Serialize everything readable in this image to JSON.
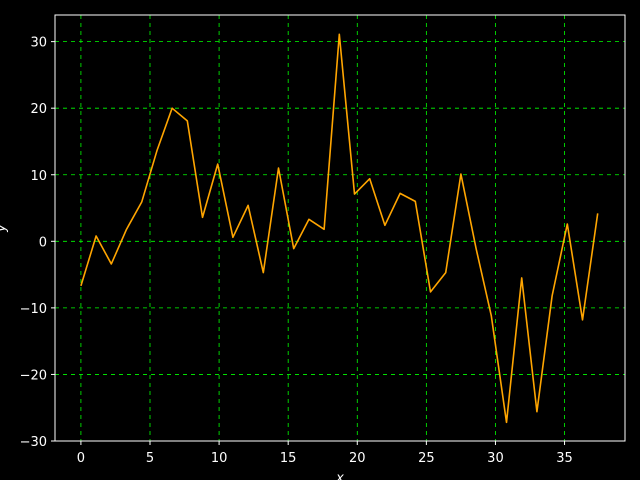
{
  "chart_data": {
    "type": "line",
    "xlabel": "x",
    "ylabel": "y",
    "xlim": [
      -1.875,
      39.375
    ],
    "ylim": [
      -30,
      34
    ],
    "grid": true,
    "x_ticks": [
      0,
      5,
      10,
      15,
      20,
      25,
      30,
      35
    ],
    "y_ticks": [
      -30,
      -20,
      -10,
      0,
      10,
      20,
      30
    ],
    "series": [
      {
        "color": "#FFA500",
        "x": [
          0,
          1.1,
          2.2,
          3.3,
          4.4,
          5.5,
          6.6,
          7.7,
          8.8,
          9.9,
          11.0,
          12.1,
          13.2,
          14.3,
          15.4,
          16.5,
          17.6,
          18.7,
          19.8,
          20.9,
          22.0,
          23.1,
          24.2,
          25.3,
          26.4,
          27.5,
          28.6,
          29.7,
          30.8,
          31.9,
          33.0,
          34.1,
          35.2,
          36.3,
          37.4
        ],
        "y": [
          -6.7,
          0.8,
          -3.4,
          1.8,
          5.9,
          13.6,
          20.0,
          18.1,
          3.6,
          11.6,
          0.6,
          5.4,
          -4.7,
          11.0,
          -1.1,
          3.3,
          1.8,
          31.1,
          7.1,
          9.4,
          2.4,
          7.2,
          6.0,
          -7.6,
          -4.7,
          10.1,
          -1.1,
          -11.2,
          -27.2,
          -5.5,
          -25.6,
          -8.2,
          2.6,
          -11.8,
          4.2
        ]
      }
    ],
    "colors": {
      "background": "#000000",
      "axes": "#FFFFFF",
      "grid": "#00FF00",
      "line": "#FFA500"
    }
  }
}
